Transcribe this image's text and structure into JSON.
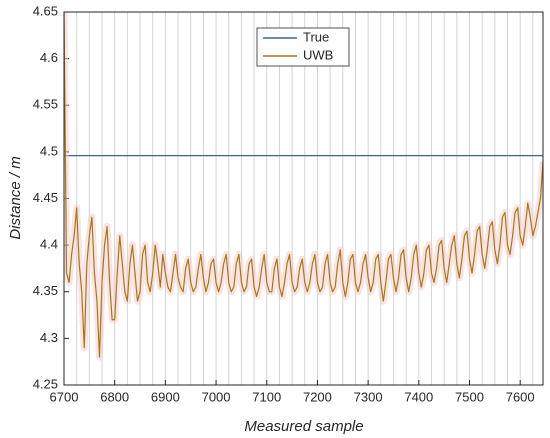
{
  "chart_data": {
    "type": "line",
    "xlabel": "Measured sample",
    "ylabel": "Distance / m",
    "xlim": [
      6700,
      7645
    ],
    "ylim": [
      4.25,
      4.65
    ],
    "xticks": [
      6700,
      6800,
      6900,
      7000,
      7100,
      7200,
      7300,
      7400,
      7500,
      7600
    ],
    "yticks": [
      4.25,
      4.3,
      4.35,
      4.4,
      4.45,
      4.5,
      4.55,
      4.6,
      4.65
    ],
    "xgrid": [
      6725,
      6750,
      6775,
      6800,
      6825,
      6850,
      6875,
      6900,
      6925,
      6950,
      6975,
      7000,
      7025,
      7050,
      7075,
      7100,
      7125,
      7150,
      7175,
      7200,
      7225,
      7250,
      7275,
      7300,
      7325,
      7350,
      7375,
      7400,
      7425,
      7450,
      7475,
      7500,
      7525,
      7550,
      7575,
      7600,
      7625
    ],
    "legend": "top",
    "series": [
      {
        "name": "True",
        "color": "#3f5fa8",
        "x": [
          6700,
          7645
        ],
        "values": [
          4.496,
          4.496
        ]
      },
      {
        "name": "UWB",
        "color": "#a5791a",
        "x": [
          6700,
          6705,
          6710,
          6715,
          6720,
          6725,
          6730,
          6735,
          6740,
          6745,
          6750,
          6755,
          6760,
          6765,
          6770,
          6775,
          6780,
          6785,
          6790,
          6795,
          6800,
          6805,
          6810,
          6815,
          6820,
          6825,
          6830,
          6835,
          6840,
          6845,
          6850,
          6855,
          6860,
          6865,
          6870,
          6875,
          6880,
          6885,
          6890,
          6895,
          6900,
          6905,
          6910,
          6915,
          6920,
          6925,
          6930,
          6935,
          6940,
          6945,
          6950,
          6955,
          6960,
          6965,
          6970,
          6975,
          6980,
          6985,
          6990,
          6995,
          7000,
          7005,
          7010,
          7015,
          7020,
          7025,
          7030,
          7035,
          7040,
          7045,
          7050,
          7055,
          7060,
          7065,
          7070,
          7075,
          7080,
          7085,
          7090,
          7095,
          7100,
          7105,
          7110,
          7115,
          7120,
          7125,
          7130,
          7135,
          7140,
          7145,
          7150,
          7155,
          7160,
          7165,
          7170,
          7175,
          7180,
          7185,
          7190,
          7195,
          7200,
          7205,
          7210,
          7215,
          7220,
          7225,
          7230,
          7235,
          7240,
          7245,
          7250,
          7255,
          7260,
          7265,
          7270,
          7275,
          7280,
          7285,
          7290,
          7295,
          7300,
          7305,
          7310,
          7315,
          7320,
          7325,
          7330,
          7335,
          7340,
          7345,
          7350,
          7355,
          7360,
          7365,
          7370,
          7375,
          7380,
          7385,
          7390,
          7395,
          7400,
          7405,
          7410,
          7415,
          7420,
          7425,
          7430,
          7435,
          7440,
          7445,
          7450,
          7455,
          7460,
          7465,
          7470,
          7475,
          7480,
          7485,
          7490,
          7495,
          7500,
          7505,
          7510,
          7515,
          7520,
          7525,
          7530,
          7535,
          7540,
          7545,
          7550,
          7555,
          7560,
          7565,
          7570,
          7575,
          7580,
          7585,
          7590,
          7595,
          7600,
          7605,
          7610,
          7615,
          7620,
          7625,
          7630,
          7635,
          7640,
          7645
        ],
        "values": [
          4.65,
          4.37,
          4.36,
          4.39,
          4.41,
          4.44,
          4.38,
          4.35,
          4.29,
          4.38,
          4.41,
          4.43,
          4.37,
          4.34,
          4.28,
          4.36,
          4.4,
          4.42,
          4.36,
          4.32,
          4.32,
          4.37,
          4.41,
          4.38,
          4.35,
          4.34,
          4.38,
          4.4,
          4.37,
          4.34,
          4.35,
          4.39,
          4.4,
          4.36,
          4.35,
          4.37,
          4.4,
          4.38,
          4.355,
          4.39,
          4.37,
          4.355,
          4.35,
          4.37,
          4.39,
          4.365,
          4.355,
          4.35,
          4.375,
          4.385,
          4.36,
          4.35,
          4.355,
          4.375,
          4.39,
          4.365,
          4.35,
          4.36,
          4.38,
          4.385,
          4.36,
          4.35,
          4.36,
          4.38,
          4.39,
          4.36,
          4.35,
          4.355,
          4.38,
          4.39,
          4.36,
          4.35,
          4.355,
          4.38,
          4.385,
          4.355,
          4.345,
          4.355,
          4.375,
          4.39,
          4.36,
          4.35,
          4.35,
          4.375,
          4.385,
          4.355,
          4.345,
          4.36,
          4.38,
          4.39,
          4.36,
          4.35,
          4.355,
          4.375,
          4.385,
          4.36,
          4.35,
          4.36,
          4.38,
          4.39,
          4.36,
          4.35,
          4.355,
          4.38,
          4.39,
          4.36,
          4.35,
          4.355,
          4.38,
          4.395,
          4.36,
          4.345,
          4.36,
          4.385,
          4.39,
          4.36,
          4.35,
          4.36,
          4.38,
          4.39,
          4.365,
          4.35,
          4.36,
          4.385,
          4.39,
          4.36,
          4.34,
          4.36,
          4.385,
          4.39,
          4.365,
          4.35,
          4.365,
          4.39,
          4.395,
          4.365,
          4.35,
          4.365,
          4.39,
          4.4,
          4.37,
          4.355,
          4.37,
          4.395,
          4.4,
          4.37,
          4.36,
          4.375,
          4.4,
          4.405,
          4.375,
          4.36,
          4.38,
          4.4,
          4.41,
          4.38,
          4.365,
          4.385,
          4.41,
          4.415,
          4.385,
          4.37,
          4.39,
          4.415,
          4.42,
          4.39,
          4.375,
          4.395,
          4.42,
          4.425,
          4.395,
          4.38,
          4.4,
          4.43,
          4.435,
          4.4,
          4.39,
          4.41,
          4.435,
          4.44,
          4.41,
          4.4,
          4.42,
          4.445,
          4.43,
          4.41,
          4.42,
          4.435,
          4.45,
          4.49
        ]
      }
    ]
  }
}
